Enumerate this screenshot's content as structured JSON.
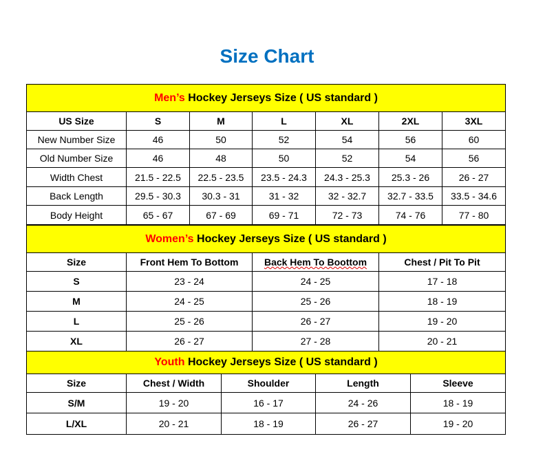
{
  "title": "Size Chart",
  "colors": {
    "title": "#0070C0",
    "banner": "#FFFF00",
    "highlight": "#FF0000"
  },
  "men": {
    "banner_highlight": "Men’s",
    "banner_rest": " Hockey Jerseys Size ( US standard )",
    "headers": [
      "US Size",
      "S",
      "M",
      "L",
      "XL",
      "2XL",
      "3XL"
    ],
    "rows": [
      [
        "New Number Size",
        "46",
        "50",
        "52",
        "54",
        "56",
        "60"
      ],
      [
        "Old Number Size",
        "46",
        "48",
        "50",
        "52",
        "54",
        "56"
      ],
      [
        "Width Chest",
        "21.5 - 22.5",
        "22.5 - 23.5",
        "23.5 - 24.3",
        "24.3 - 25.3",
        "25.3 - 26",
        "26 - 27"
      ],
      [
        "Back Length",
        "29.5 - 30.3",
        "30.3 - 31",
        "31 - 32",
        "32 - 32.7",
        "32.7 - 33.5",
        "33.5 - 34.6"
      ],
      [
        "Body Height",
        "65 - 67",
        "67 - 69",
        "69 - 71",
        "72 - 73",
        "74 - 76",
        "77 - 80"
      ]
    ]
  },
  "women": {
    "banner_highlight": "Women’s",
    "banner_rest": " Hockey Jerseys Size ( US standard )",
    "headers": [
      "Size",
      "Front Hem To Bottom",
      "Back Hem To Boottom",
      "Chest / Pit To Pit"
    ],
    "rows": [
      [
        "S",
        "23 - 24",
        "24 - 25",
        "17 - 18"
      ],
      [
        "M",
        "24 - 25",
        "25 - 26",
        "18 - 19"
      ],
      [
        "L",
        "25 - 26",
        "26 - 27",
        "19 - 20"
      ],
      [
        "XL",
        "26 - 27",
        "27 - 28",
        "20 - 21"
      ]
    ]
  },
  "youth": {
    "banner_highlight": "Youth",
    "banner_rest": " Hockey Jerseys Size ( US standard )",
    "headers": [
      "Size",
      "Chest / Width",
      "Shoulder",
      "Length",
      "Sleeve"
    ],
    "rows": [
      [
        "S/M",
        "19 - 20",
        "16 - 17",
        "24 - 26",
        "18 - 19"
      ],
      [
        "L/XL",
        "20 - 21",
        "18 - 19",
        "26 - 27",
        "19 - 20"
      ]
    ]
  }
}
